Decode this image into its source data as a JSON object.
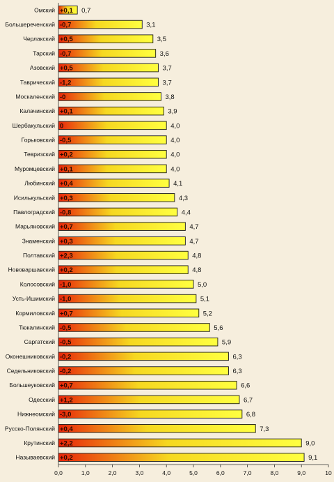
{
  "chart_data": {
    "type": "bar",
    "orientation": "horizontal",
    "title": "",
    "xlabel": "",
    "ylabel": "",
    "xlim": [
      0,
      10
    ],
    "x_ticks": [
      "0,0",
      "1,0",
      "2,0",
      "3,0",
      "4,0",
      "5,0",
      "6,0",
      "7,0",
      "8,0",
      "9,0",
      "10"
    ],
    "grid": false,
    "legend": "none",
    "colors": {
      "bar_left": "#e8250a",
      "bar_mid": "#f6d820",
      "bar_right": "#ffff40",
      "background": "#f6eedd"
    },
    "categories": [
      "Омский",
      "Большереченский",
      "Черлакский",
      "Тарский",
      "Азовский",
      "Таврический",
      "Москаленский",
      "Калачинский",
      "Шербакульский",
      "Горьковский",
      "Тевризский",
      "Муромцевский",
      "Любинский",
      "Исилькульский",
      "Павлоградский",
      "Марьяновский",
      "Знаменский",
      "Полтавский",
      "Нововаршавский",
      "Колосовский",
      "Усть-Ишимский",
      "Кормиловский",
      "Тюкалинский",
      "Саргатский",
      "Оконешниковский",
      "Седельниковский",
      "Большеуковский",
      "Одесский",
      "Нижнеомский",
      "Русско-Полянский",
      "Крутинский",
      "Называевский"
    ],
    "values": [
      0.7,
      3.1,
      3.5,
      3.6,
      3.7,
      3.7,
      3.8,
      3.9,
      4.0,
      4.0,
      4.0,
      4.0,
      4.1,
      4.3,
      4.4,
      4.7,
      4.7,
      4.8,
      4.8,
      5.0,
      5.1,
      5.2,
      5.6,
      5.9,
      6.3,
      6.3,
      6.6,
      6.7,
      6.8,
      7.3,
      9.0,
      9.1
    ],
    "value_labels": [
      "0,7",
      "3,1",
      "3,5",
      "3,6",
      "3,7",
      "3,7",
      "3,8",
      "3,9",
      "4,0",
      "4,0",
      "4,0",
      "4,0",
      "4,1",
      "4,3",
      "4,4",
      "4,7",
      "4,7",
      "4,8",
      "4,8",
      "5,0",
      "5,1",
      "5,2",
      "5,6",
      "5,9",
      "6,3",
      "6,3",
      "6,6",
      "6,7",
      "6,8",
      "7,3",
      "9,0",
      "9,1"
    ],
    "delta_labels": [
      "+0,1",
      "-0,7",
      "+0,5",
      "-0,7",
      "+0,5",
      "-1,2",
      "-0",
      "+0,1",
      "0",
      "-0,5",
      "+0,2",
      "+0,1",
      "+0,4",
      "+0,3",
      "-0,8",
      "+0,7",
      "+0,3",
      "+2,3",
      "+0,2",
      "-1,0",
      "-1,0",
      "+0,7",
      "-0,5",
      "-0,5",
      "-0,2",
      "-0,2",
      "+0,7",
      "+1,2",
      "-3,0",
      "+0,4",
      "+2,2",
      "+0,2"
    ]
  }
}
